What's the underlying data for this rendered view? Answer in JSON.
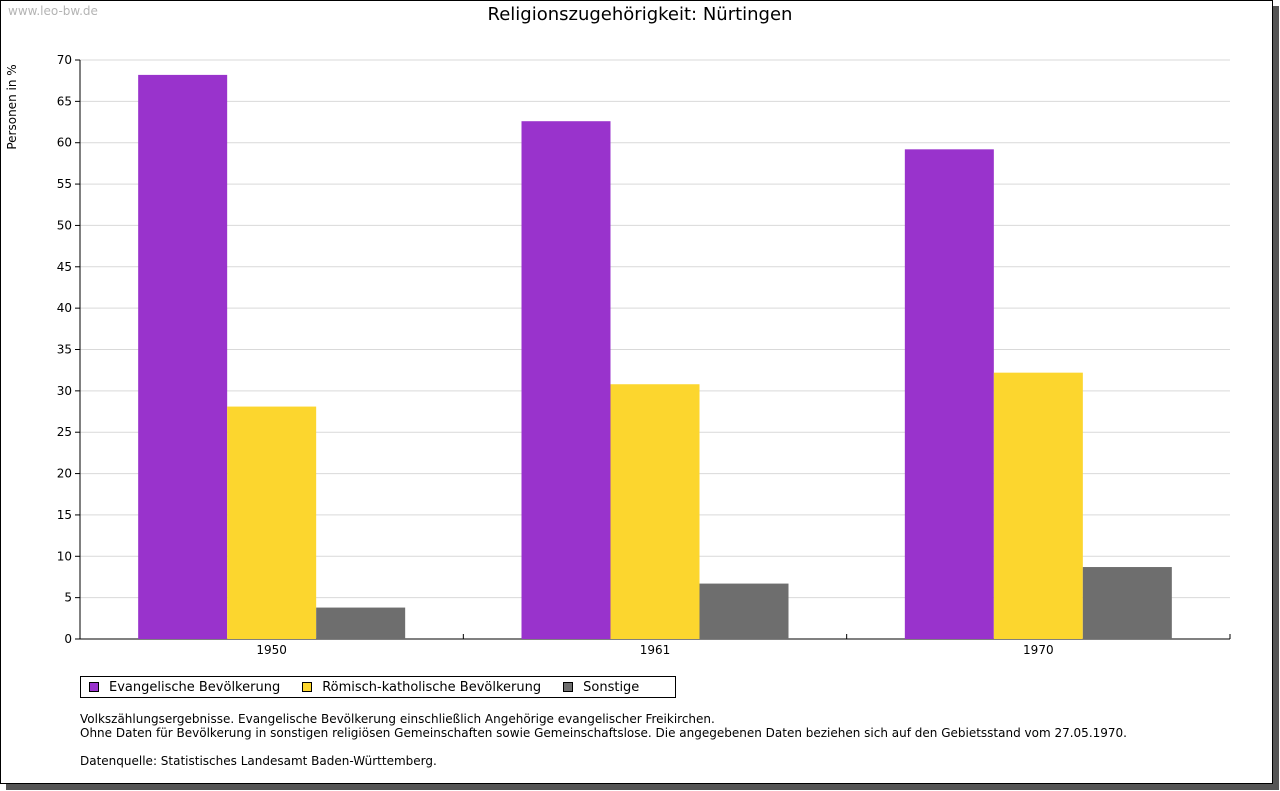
{
  "watermark": "www.leo-bw.de",
  "colors": {
    "evangelisch": "#9933cc",
    "katholisch": "#fcd62e",
    "sonstige": "#6e6e6e",
    "grid": "#d9d9d9",
    "axis": "#000000"
  },
  "chart_data": {
    "type": "bar",
    "title": "Religionszugehörigkeit: Nürtingen",
    "xlabel": "",
    "ylabel": "Personen in %",
    "ylim": [
      0,
      70
    ],
    "yticks": [
      0,
      5,
      10,
      15,
      20,
      25,
      30,
      35,
      40,
      45,
      50,
      55,
      60,
      65,
      70
    ],
    "categories": [
      "1950",
      "1961",
      "1970"
    ],
    "series": [
      {
        "name": "Evangelische Bevölkerung",
        "color": "#9933cc",
        "values": [
          68.2,
          62.6,
          59.2
        ]
      },
      {
        "name": "Römisch-katholische Bevölkerung",
        "color": "#fcd62e",
        "values": [
          28.1,
          30.8,
          32.2
        ]
      },
      {
        "name": "Sonstige",
        "color": "#6e6e6e",
        "values": [
          3.8,
          6.7,
          8.7
        ]
      }
    ],
    "legend_position": "bottom-left",
    "grid": true
  },
  "notes": {
    "line1": "Volkszählungsergebnisse. Evangelische Bevölkerung einschließlich Angehörige evangelischer Freikirchen.",
    "line2": "Ohne Daten für Bevölkerung in sonstigen religiösen Gemeinschaften sowie Gemeinschaftslose. Die angegebenen Daten beziehen sich auf den Gebietsstand vom 27.05.1970.",
    "source": "Datenquelle: Statistisches Landesamt Baden-Württemberg."
  }
}
